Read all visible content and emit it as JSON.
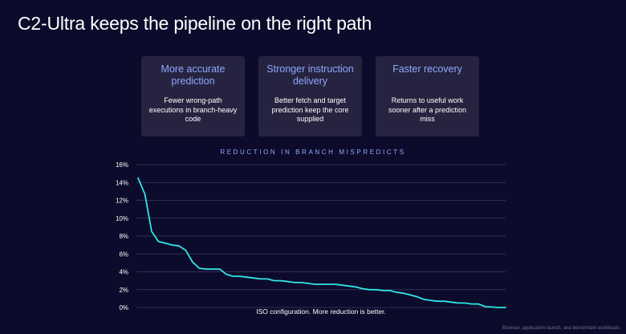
{
  "slide": {
    "title": "C2-Ultra keeps the pipeline on the right path",
    "footnote": "Browser, application launch, and benchmark workloads"
  },
  "cards": [
    {
      "heading": "More accurate prediction",
      "body": "Fewer wrong-path executions in branch-heavy code"
    },
    {
      "heading": "Stronger instruction delivery",
      "body": "Better fetch and target prediction keep the core supplied"
    },
    {
      "heading": "Faster recovery",
      "body": "Returns to useful work sooner after a prediction miss"
    }
  ],
  "colors": {
    "background": "#0d0b2b",
    "card": "#25233f",
    "accent": "#8fa8ff",
    "line": "#2ee6e6",
    "grid": "#3a3d63"
  },
  "chart_data": {
    "type": "line",
    "title": "REDUCTION IN BRANCH MISPREDICTS",
    "annotation": "ISO configuration. More reduction is better.",
    "xlabel": "",
    "ylabel": "",
    "ylim": [
      0,
      16
    ],
    "ytick_labels": [
      "16%",
      "14%",
      "12%",
      "10%",
      "8%",
      "6%",
      "4%",
      "2%",
      "0%"
    ],
    "ytick_values": [
      16,
      14,
      12,
      10,
      8,
      6,
      4,
      2,
      0
    ],
    "grid": true,
    "series": [
      {
        "values": [
          14.5,
          12.7,
          8.5,
          7.4,
          7.2,
          7.0,
          6.9,
          6.4,
          5.1,
          4.4,
          4.3,
          4.3,
          4.3,
          3.7,
          3.5,
          3.5,
          3.4,
          3.3,
          3.2,
          3.2,
          3.0,
          3.0,
          2.9,
          2.8,
          2.8,
          2.7,
          2.6,
          2.6,
          2.6,
          2.6,
          2.5,
          2.4,
          2.3,
          2.1,
          2.0,
          2.0,
          1.9,
          1.9,
          1.7,
          1.6,
          1.4,
          1.2,
          0.9,
          0.8,
          0.7,
          0.7,
          0.6,
          0.5,
          0.5,
          0.4,
          0.4,
          0.1,
          0.05,
          0.0,
          0.0
        ]
      }
    ]
  }
}
